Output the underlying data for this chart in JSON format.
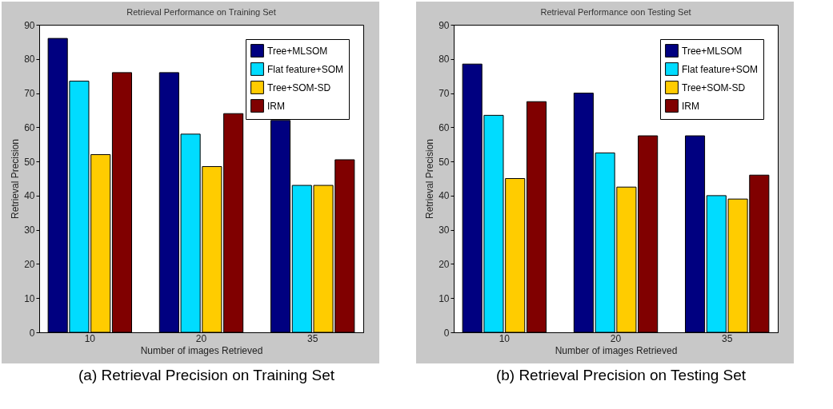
{
  "chart_data": [
    {
      "type": "bar",
      "title": "Retrieval Performance on Training Set",
      "xlabel": "Number of images Retrieved",
      "ylabel": "Retrieval Precision",
      "categories": [
        "10",
        "20",
        "35"
      ],
      "ylim": [
        0,
        90
      ],
      "yticks": [
        0,
        10,
        20,
        30,
        40,
        50,
        60,
        70,
        80,
        90
      ],
      "legend": "top right",
      "annotations": [
        "(a) Retrieval Precision on Training Set"
      ],
      "series": [
        {
          "name": "Tree+MLSOM",
          "color": "#000080",
          "values": [
            86,
            76,
            62
          ]
        },
        {
          "name": "Flat feature+SOM",
          "color": "#00dcff",
          "values": [
            73.5,
            58,
            43
          ]
        },
        {
          "name": "Tree+SOM-SD",
          "color": "#ffcc00",
          "values": [
            52,
            48.5,
            43
          ]
        },
        {
          "name": "IRM",
          "color": "#800000",
          "values": [
            76,
            64,
            50.5
          ]
        }
      ]
    },
    {
      "type": "bar",
      "title": "Retrieval Performance oon Testing Set",
      "xlabel": "Number of images Retrieved",
      "ylabel": "Retrieval Precision",
      "categories": [
        "10",
        "20",
        "35"
      ],
      "ylim": [
        0,
        90
      ],
      "yticks": [
        0,
        10,
        20,
        30,
        40,
        50,
        60,
        70,
        80,
        90
      ],
      "legend": "top right",
      "annotations": [
        "(b) Retrieval Precision on Testing Set"
      ],
      "series": [
        {
          "name": "Tree+MLSOM",
          "color": "#000080",
          "values": [
            78.5,
            70,
            57.5
          ]
        },
        {
          "name": "Flat feature+SOM",
          "color": "#00dcff",
          "values": [
            63.5,
            52.5,
            40
          ]
        },
        {
          "name": "Tree+SOM-SD",
          "color": "#ffcc00",
          "values": [
            45,
            42.5,
            39
          ]
        },
        {
          "name": "IRM",
          "color": "#800000",
          "values": [
            67.5,
            57.5,
            46
          ]
        }
      ]
    }
  ]
}
